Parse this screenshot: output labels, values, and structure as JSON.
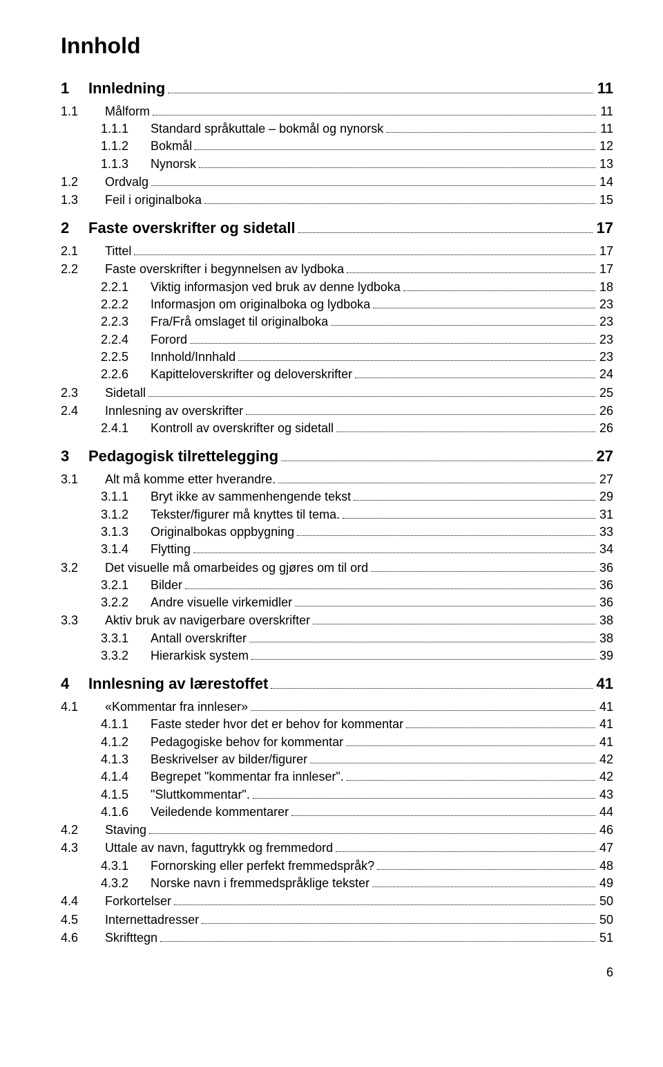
{
  "title": "Innhold",
  "pageNumber": "6",
  "toc": [
    {
      "level": 1,
      "num": "1",
      "text": "Innledning",
      "page": "11"
    },
    {
      "level": 2,
      "num": "1.1",
      "text": "Målform",
      "page": "11"
    },
    {
      "level": 3,
      "num": "1.1.1",
      "text": "Standard språkuttale – bokmål og nynorsk",
      "page": "11"
    },
    {
      "level": 3,
      "num": "1.1.2",
      "text": "Bokmål",
      "page": "12"
    },
    {
      "level": 3,
      "num": "1.1.3",
      "text": "Nynorsk",
      "page": "13"
    },
    {
      "level": 2,
      "num": "1.2",
      "text": "Ordvalg",
      "page": "14"
    },
    {
      "level": 2,
      "num": "1.3",
      "text": "Feil i originalboka",
      "page": "15"
    },
    {
      "level": 1,
      "num": "2",
      "text": "Faste overskrifter og sidetall",
      "page": "17"
    },
    {
      "level": 2,
      "num": "2.1",
      "text": "Tittel",
      "page": "17"
    },
    {
      "level": 2,
      "num": "2.2",
      "text": "Faste overskrifter i begynnelsen av lydboka",
      "page": "17"
    },
    {
      "level": 3,
      "num": "2.2.1",
      "text": "Viktig informasjon ved bruk av denne lydboka",
      "page": "18"
    },
    {
      "level": 3,
      "num": "2.2.2",
      "text": "Informasjon om originalboka og lydboka",
      "page": "23"
    },
    {
      "level": 3,
      "num": "2.2.3",
      "text": "Fra/Frå omslaget til originalboka",
      "page": "23"
    },
    {
      "level": 3,
      "num": "2.2.4",
      "text": "Forord",
      "page": "23"
    },
    {
      "level": 3,
      "num": "2.2.5",
      "text": "Innhold/Innhald",
      "page": "23"
    },
    {
      "level": 3,
      "num": "2.2.6",
      "text": "Kapitteloverskrifter og deloverskrifter",
      "page": "24"
    },
    {
      "level": 2,
      "num": "2.3",
      "text": "Sidetall",
      "page": "25"
    },
    {
      "level": 2,
      "num": "2.4",
      "text": "Innlesning av overskrifter",
      "page": "26"
    },
    {
      "level": 3,
      "num": "2.4.1",
      "text": "Kontroll av overskrifter og sidetall",
      "page": "26"
    },
    {
      "level": 1,
      "num": "3",
      "text": "Pedagogisk tilrettelegging",
      "page": "27"
    },
    {
      "level": 2,
      "num": "3.1",
      "text": "Alt må komme etter hverandre.",
      "page": "27"
    },
    {
      "level": 3,
      "num": "3.1.1",
      "text": "Bryt ikke av sammenhengende tekst",
      "page": "29"
    },
    {
      "level": 3,
      "num": "3.1.2",
      "text": "Tekster/figurer må knyttes til tema.",
      "page": "31"
    },
    {
      "level": 3,
      "num": "3.1.3",
      "text": "Originalbokas oppbygning",
      "page": "33"
    },
    {
      "level": 3,
      "num": "3.1.4",
      "text": "Flytting",
      "page": "34"
    },
    {
      "level": 2,
      "num": "3.2",
      "text": "Det visuelle må omarbeides og gjøres om til ord",
      "page": "36"
    },
    {
      "level": 3,
      "num": "3.2.1",
      "text": "Bilder",
      "page": "36"
    },
    {
      "level": 3,
      "num": "3.2.2",
      "text": "Andre visuelle virkemidler",
      "page": "36"
    },
    {
      "level": 2,
      "num": "3.3",
      "text": "Aktiv bruk av navigerbare overskrifter",
      "page": "38"
    },
    {
      "level": 3,
      "num": "3.3.1",
      "text": "Antall overskrifter",
      "page": "38"
    },
    {
      "level": 3,
      "num": "3.3.2",
      "text": "Hierarkisk system",
      "page": "39"
    },
    {
      "level": 1,
      "num": "4",
      "text": "Innlesning av lærestoffet",
      "page": "41"
    },
    {
      "level": 2,
      "num": "4.1",
      "text": "«Kommentar fra innleser»",
      "page": "41"
    },
    {
      "level": 3,
      "num": "4.1.1",
      "text": "Faste steder hvor det er behov for kommentar",
      "page": "41"
    },
    {
      "level": 3,
      "num": "4.1.2",
      "text": "Pedagogiske behov for kommentar",
      "page": "41"
    },
    {
      "level": 3,
      "num": "4.1.3",
      "text": "Beskrivelser av bilder/figurer",
      "page": "42"
    },
    {
      "level": 3,
      "num": "4.1.4",
      "text": "Begrepet \"kommentar fra innleser\".",
      "page": "42"
    },
    {
      "level": 3,
      "num": "4.1.5",
      "text": "\"Sluttkommentar\".",
      "page": "43"
    },
    {
      "level": 3,
      "num": "4.1.6",
      "text": "Veiledende kommentarer",
      "page": "44"
    },
    {
      "level": 2,
      "num": "4.2",
      "text": "Staving",
      "page": "46"
    },
    {
      "level": 2,
      "num": "4.3",
      "text": "Uttale av navn, faguttrykk og fremmedord",
      "page": "47"
    },
    {
      "level": 3,
      "num": "4.3.1",
      "text": "Fornorsking eller perfekt fremmedspråk?",
      "page": "48"
    },
    {
      "level": 3,
      "num": "4.3.2",
      "text": "Norske navn i fremmedspråklige tekster",
      "page": "49"
    },
    {
      "level": 2,
      "num": "4.4",
      "text": "Forkortelser",
      "page": "50"
    },
    {
      "level": 2,
      "num": "4.5",
      "text": "Internettadresser",
      "page": "50"
    },
    {
      "level": 2,
      "num": "4.6",
      "text": "Skrifttegn",
      "page": "51"
    }
  ]
}
